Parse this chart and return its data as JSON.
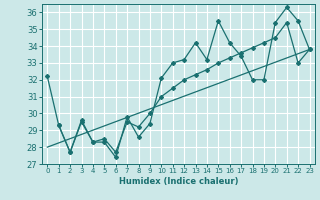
{
  "xlabel": "Humidex (Indice chaleur)",
  "background_color": "#cce8e8",
  "grid_color": "#ffffff",
  "line_color": "#1a7070",
  "xlim": [
    -0.5,
    23.5
  ],
  "ylim": [
    27,
    36.5
  ],
  "xticks": [
    0,
    1,
    2,
    3,
    4,
    5,
    6,
    7,
    8,
    9,
    10,
    11,
    12,
    13,
    14,
    15,
    16,
    17,
    18,
    19,
    20,
    21,
    22,
    23
  ],
  "yticks": [
    27,
    28,
    29,
    30,
    31,
    32,
    33,
    34,
    35,
    36
  ],
  "series1_x": [
    0,
    1,
    2,
    3,
    4,
    5,
    6,
    7,
    8,
    9,
    10,
    11,
    12,
    13,
    14,
    15,
    16,
    17,
    18,
    19,
    20,
    21,
    22,
    23
  ],
  "series1_y": [
    32.2,
    29.3,
    27.7,
    29.6,
    28.3,
    28.3,
    27.4,
    29.8,
    28.6,
    29.4,
    32.1,
    33.0,
    33.2,
    34.2,
    33.2,
    35.5,
    34.2,
    33.4,
    32.0,
    32.0,
    35.4,
    36.3,
    35.5,
    33.8
  ],
  "series2_x": [
    1,
    2,
    3,
    4,
    5,
    6,
    7,
    8,
    9,
    10,
    11,
    12,
    13,
    14,
    15,
    16,
    17,
    18,
    19,
    20,
    21,
    22,
    23
  ],
  "series2_y": [
    29.3,
    27.7,
    29.5,
    28.3,
    28.5,
    27.7,
    29.5,
    29.2,
    30.0,
    31.0,
    31.5,
    32.0,
    32.3,
    32.6,
    33.0,
    33.3,
    33.6,
    33.9,
    34.2,
    34.5,
    35.4,
    33.0,
    33.8
  ],
  "series3_x": [
    0,
    23
  ],
  "series3_y": [
    28.0,
    33.8
  ]
}
